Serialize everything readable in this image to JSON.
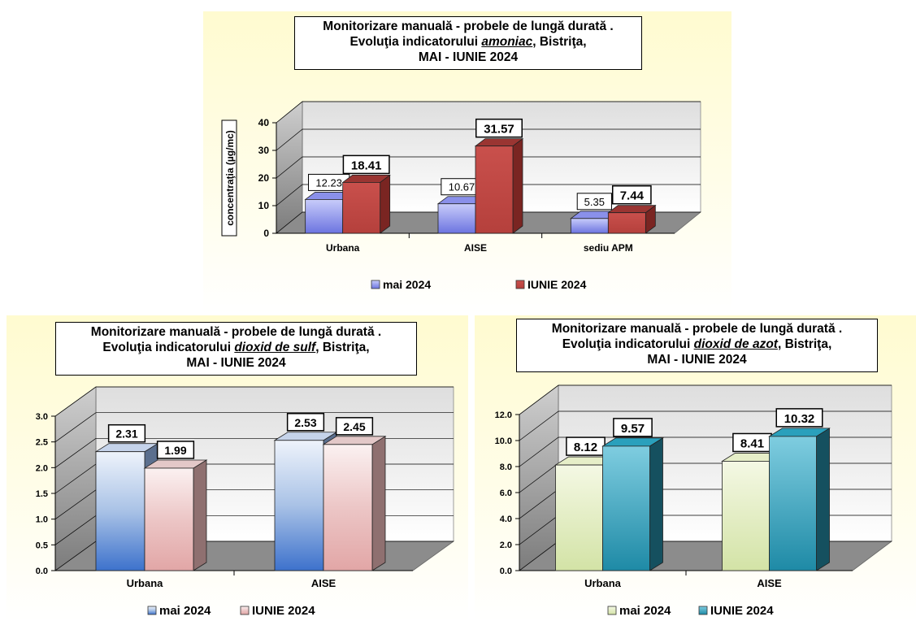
{
  "colors": {
    "panel_bg": "#fffbd0",
    "ammonia_may": "#9aa0f0",
    "ammonia_june": "#c0504d",
    "so2_may": "#4a7cd0",
    "so2_june": "#e8b0b0",
    "no2_may": "#e6efc4",
    "no2_june": "#2fa9c2"
  },
  "chart_data": [
    {
      "type": "bar",
      "title_lines": {
        "pre": "Monitorizare manuală - probele de lungă durată .",
        "l2_pre": "Evoluţia indicatorului ",
        "l2_em": "amoniac",
        "l2_post": ", Bistriţa,",
        "l3": "MAI - IUNIE 2024"
      },
      "ylabel": "concentraţia (µg/mc)",
      "ylim": [
        0,
        40
      ],
      "yticks": [
        "0",
        "10",
        "20",
        "30",
        "40"
      ],
      "categories": [
        "Urbana",
        "AISE",
        "sediu APM"
      ],
      "series": [
        {
          "name": "mai 2024",
          "values": [
            12.23,
            10.67,
            5.35
          ],
          "labels": [
            "12.23",
            "10.67",
            "5.35"
          ]
        },
        {
          "name": "IUNIE 2024",
          "values": [
            18.41,
            31.57,
            7.44
          ],
          "labels": [
            "18.41",
            "31.57",
            "7.44"
          ]
        }
      ],
      "legend_position": "bottom",
      "grid": true
    },
    {
      "type": "bar",
      "title_lines": {
        "pre": "Monitorizare manuală - probele de lungă durată .",
        "l2_pre": "Evoluţia indicatorului ",
        "l2_em": "dioxid de sulf",
        "l2_post": ", Bistriţa,",
        "l3": "MAI - IUNIE 2024"
      },
      "ylabel": "",
      "ylim": [
        0,
        3
      ],
      "yticks": [
        "0.0",
        "0.5",
        "1.0",
        "1.5",
        "2.0",
        "2.5",
        "3.0"
      ],
      "categories": [
        "Urbana",
        "AISE"
      ],
      "series": [
        {
          "name": "mai 2024",
          "values": [
            2.31,
            2.53
          ],
          "labels": [
            "2.31",
            "2.53"
          ]
        },
        {
          "name": "IUNIE 2024",
          "values": [
            1.99,
            2.45
          ],
          "labels": [
            "1.99",
            "2.45"
          ]
        }
      ],
      "legend_position": "bottom",
      "grid": true
    },
    {
      "type": "bar",
      "title_lines": {
        "pre": "Monitorizare manuală - probele de lungă durată .",
        "l2_pre": "Evoluţia indicatorului ",
        "l2_em": "dioxid de azot",
        "l2_post": ", Bistriţa,",
        "l3": "MAI - IUNIE 2024"
      },
      "ylabel": "",
      "ylim": [
        0,
        12
      ],
      "yticks": [
        "0.0",
        "2.0",
        "4.0",
        "6.0",
        "8.0",
        "10.0",
        "12.0"
      ],
      "categories": [
        "Urbana",
        "AISE"
      ],
      "series": [
        {
          "name": "mai 2024",
          "values": [
            8.12,
            8.41
          ],
          "labels": [
            "8.12",
            "8.41"
          ]
        },
        {
          "name": "IUNIE 2024",
          "values": [
            9.57,
            10.32
          ],
          "labels": [
            "9.57",
            "10.32"
          ]
        }
      ],
      "legend_position": "bottom",
      "grid": true
    }
  ]
}
